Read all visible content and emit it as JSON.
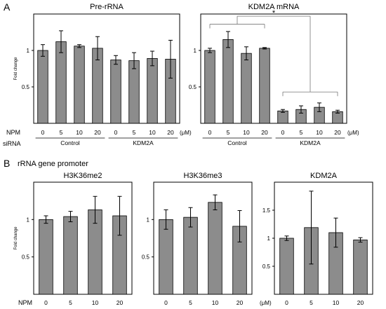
{
  "panels": {
    "a": {
      "letter": "A"
    },
    "b": {
      "letter": "B",
      "subtitle": "rRNA gene promoter"
    }
  },
  "rows": {
    "npm": "NPM",
    "sirna": "siRNA",
    "unit": "(μM)"
  },
  "colors": {
    "bar": "#8c8c8c",
    "stroke": "#000000"
  },
  "chart_data": [
    {
      "id": "pre-rrna",
      "type": "bar",
      "title": "Pre-rRNA",
      "ylabel": "Fold change",
      "ylim": [
        0,
        1.5
      ],
      "yticks": [
        0.5,
        1
      ],
      "categories": [
        "0",
        "5",
        "10",
        "20",
        "0",
        "5",
        "10",
        "20"
      ],
      "groups": [
        {
          "label": "Control",
          "range": [
            0,
            3
          ]
        },
        {
          "label": "KDM2A",
          "range": [
            4,
            7
          ]
        }
      ],
      "values": [
        1.0,
        1.12,
        1.06,
        1.03,
        0.87,
        0.86,
        0.89,
        0.88
      ],
      "errors": [
        0.08,
        0.15,
        0.02,
        0.16,
        0.06,
        0.11,
        0.1,
        0.26
      ]
    },
    {
      "id": "kdm2a-mrna",
      "type": "bar",
      "title": "KDM2A mRNA",
      "ylabel": "",
      "ylim": [
        0,
        1.5
      ],
      "yticks": [
        0.5,
        1
      ],
      "categories": [
        "0",
        "5",
        "10",
        "20",
        "0",
        "5",
        "10",
        "20"
      ],
      "groups": [
        {
          "label": "Control",
          "range": [
            0,
            3
          ]
        },
        {
          "label": "KDM2A",
          "range": [
            4,
            7
          ]
        }
      ],
      "values": [
        1.0,
        1.15,
        0.96,
        1.03,
        0.17,
        0.19,
        0.22,
        0.16
      ],
      "errors": [
        0.03,
        0.11,
        0.09,
        0.01,
        0.02,
        0.05,
        0.06,
        0.02
      ],
      "annotation": "*"
    },
    {
      "id": "h3k36me2",
      "type": "bar",
      "title": "H3K36me2",
      "ylabel": "Fold change",
      "ylim": [
        0,
        1.5
      ],
      "yticks": [
        0.5,
        1
      ],
      "categories": [
        "0",
        "5",
        "10",
        "20"
      ],
      "values": [
        1.0,
        1.04,
        1.13,
        1.05
      ],
      "errors": [
        0.05,
        0.07,
        0.18,
        0.26
      ]
    },
    {
      "id": "h3k36me3",
      "type": "bar",
      "title": "H3K36me3",
      "ylabel": "",
      "ylim": [
        0,
        1.5
      ],
      "yticks": [
        0.5,
        1
      ],
      "categories": [
        "0",
        "5",
        "10",
        "20"
      ],
      "values": [
        1.0,
        1.03,
        1.23,
        0.91
      ],
      "errors": [
        0.13,
        0.13,
        0.1,
        0.21
      ]
    },
    {
      "id": "kdm2a-promoter",
      "type": "bar",
      "title": "KDM2A",
      "ylabel": "",
      "ylim": [
        0,
        2.0
      ],
      "yticks": [
        0.5,
        1,
        1.5
      ],
      "categories": [
        "0",
        "5",
        "10",
        "20"
      ],
      "values": [
        1.0,
        1.19,
        1.1,
        0.97
      ],
      "errors": [
        0.04,
        0.65,
        0.26,
        0.04
      ]
    }
  ]
}
